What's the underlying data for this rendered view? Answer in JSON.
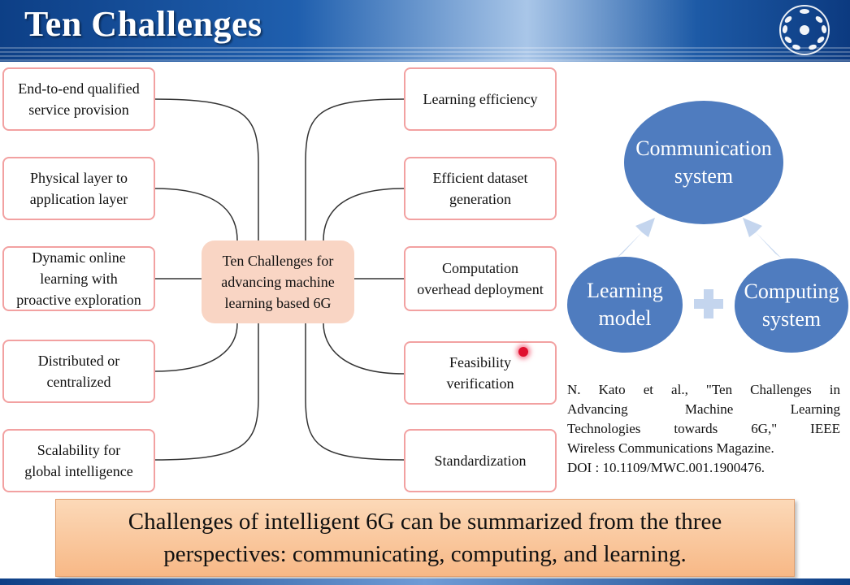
{
  "header": {
    "title": "Ten Challenges",
    "logo_icon": "university-emblem-icon",
    "bg_color": "#1f5fae"
  },
  "diagram": {
    "center": "Ten Challenges for\nadvancing machine\nlearning based 6G",
    "left_items": [
      "End-to-end qualified\nservice provision",
      "Physical layer to\napplication layer",
      "Dynamic online\nlearning with\nproactive exploration",
      "Distributed or\ncentralized",
      "Scalability for\nglobal intelligence"
    ],
    "right_items": [
      "Learning efficiency",
      "Efficient dataset\ngeneration",
      "Computation\noverhead deployment",
      "Feasibility\nverification",
      "Standardization"
    ],
    "box_border_color": "#f2a1a1",
    "center_color": "#f9d5c4"
  },
  "circles": {
    "communication": "Communication\nsystem",
    "learning": "Learning\nmodel",
    "computing": "Computing\nsystem",
    "color": "#4f7cbf",
    "arrow_color": "#c4d5ee"
  },
  "reference": {
    "lines": [
      "N. Kato et al., \"Ten Challenges in",
      "Advancing Machine Learning",
      "Technologies towards 6G,\" IEEE",
      "Wireless Communications Magazine.",
      "DOI : 10.1109/MWC.001.1900476."
    ]
  },
  "summary": {
    "line1": "Challenges of intelligent 6G can be summarized from the three",
    "line2": "perspectives: communicating, computing, and learning.",
    "color": "#f7b886"
  }
}
